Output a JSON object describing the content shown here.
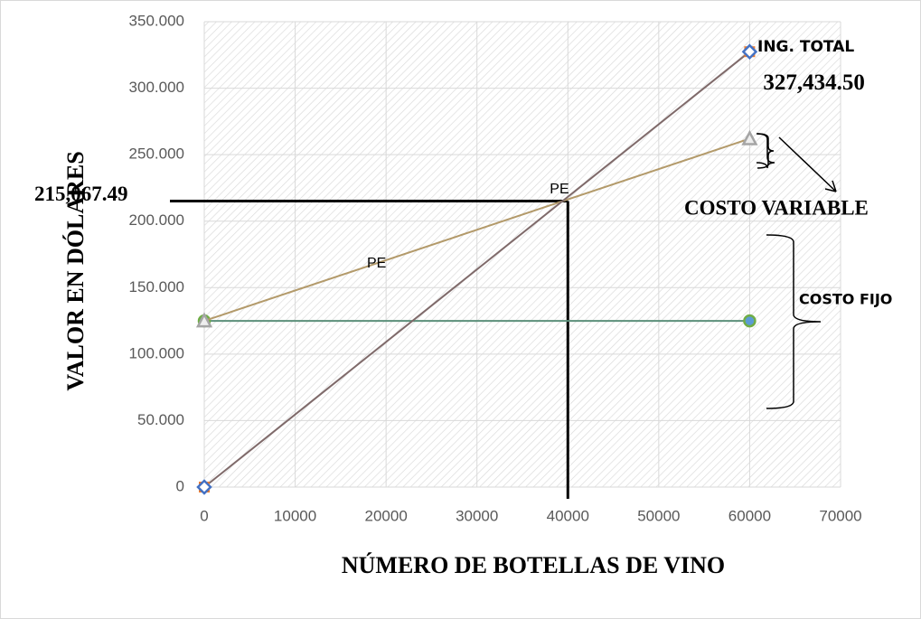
{
  "chart_data": {
    "type": "line",
    "x_label": "NÚMERO DE BOTELLAS DE VINO",
    "y_label": "VALOR EN DÓLARES",
    "xlim": [
      0,
      70000
    ],
    "xticks": [
      0,
      10000,
      20000,
      30000,
      40000,
      50000,
      60000,
      70000
    ],
    "ylim": [
      0,
      350000
    ],
    "yticks": [
      0,
      {
        "value": 50000,
        "label": "50.000"
      },
      {
        "value": 100000,
        "label": "100.000"
      },
      {
        "value": 150000,
        "label": "150.000"
      },
      {
        "value": 200000,
        "label": "200.000"
      },
      {
        "value": 250000,
        "label": "250.000"
      },
      {
        "value": 300000,
        "label": "300.000"
      },
      {
        "value": 350000,
        "label": "350.000"
      }
    ],
    "grid": true,
    "series": [
      {
        "color": "#7f6a6a",
        "marker": "diamond",
        "marker_color": "#4472c4",
        "x": [
          0,
          60000
        ],
        "values": [
          0,
          327434.5
        ],
        "value_labels": [
          null,
          "327,434.50"
        ]
      },
      {
        "color": "#b39a6a",
        "marker": "triangle",
        "marker_color": "#a5a5a5",
        "x": [
          0,
          60000
        ],
        "values": [
          125000,
          262000
        ]
      },
      {
        "color": "#5b8f7a",
        "marker": "circle",
        "marker_color": "#70ad47",
        "x": [
          0,
          60000
        ],
        "values": [
          125000,
          125000
        ]
      }
    ],
    "break_even": {
      "x": 40000,
      "y": 215067.49,
      "label": "215,067.49",
      "text": "PE"
    },
    "annotations": {
      "ingreso": "ING. TOTAL",
      "variable": "COSTO VARIABLE",
      "fijo": "COSTO FIJO",
      "pe": "PE"
    }
  }
}
